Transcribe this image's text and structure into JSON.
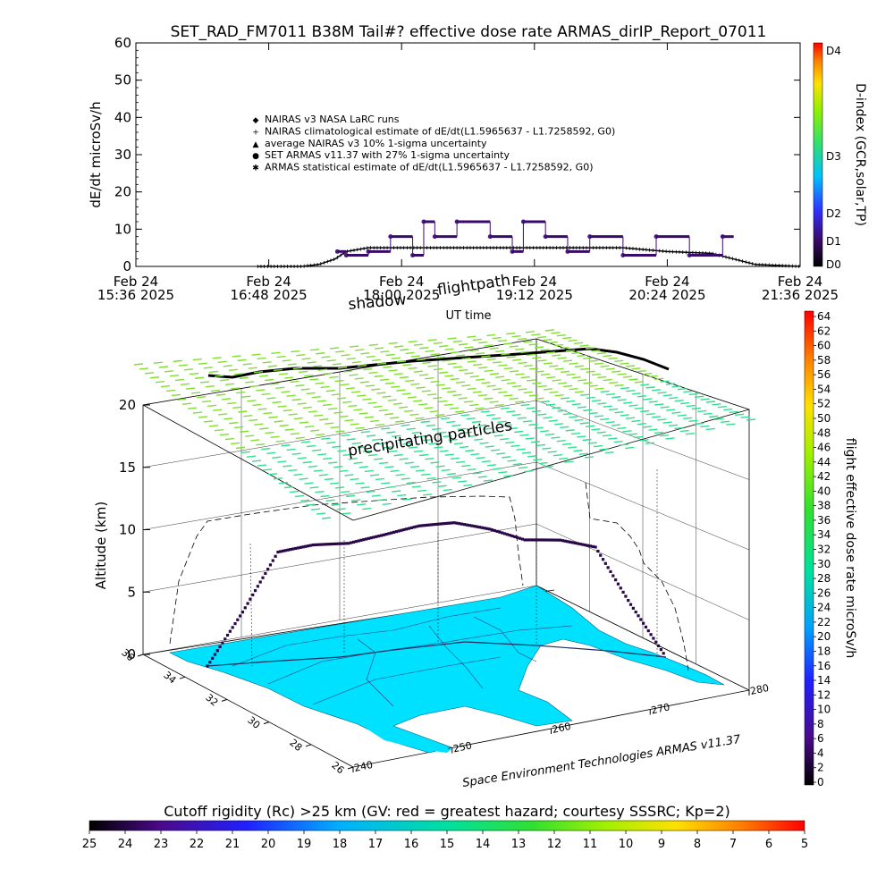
{
  "chart_data": [
    {
      "type": "scatter",
      "title": "SET_RAD_FM7011  B38M Tail#? effective dose rate ARMAS_dirIP_Report_07011",
      "xlabel": "UT time",
      "ylabel": "dE/dt microSv/h",
      "ylim": [
        0,
        60
      ],
      "yticks": [
        "0",
        "10",
        "20",
        "30",
        "40",
        "50",
        "60"
      ],
      "xtick_labels": [
        {
          "date": "Feb 24",
          "time": "15:36  2025"
        },
        {
          "date": "Feb 24",
          "time": "16:48  2025"
        },
        {
          "date": "Feb 24",
          "time": "18:00  2025"
        },
        {
          "date": "Feb 24",
          "time": "19:12  2025"
        },
        {
          "date": "Feb 24",
          "time": "20:24  2025"
        },
        {
          "date": "Feb 24",
          "time": "21:36  2025"
        }
      ],
      "legend_position": "top-left",
      "legend": [
        "NAIRAS v3 NASA LaRC runs",
        "NAIRAS climatological estimate of dE/dt(L1.5965637 - L1.7258592, G0)",
        "average NAIRAS v3 10% 1-sigma uncertainty",
        "SET ARMAS v11.37 with 27% 1-sigma uncertainty",
        "ARMAS statistical estimate of dE/dt(L1.5965637 - L1.7258592, G0)"
      ],
      "colorbar": {
        "label": "D-index (GCR,solar,TP)",
        "ticks": [
          "D0",
          "D1",
          "D2",
          "D3",
          "D4"
        ]
      },
      "series": [
        {
          "name": "NAIRAS climatological estimate of dE/dt(L1.5965637 - L1.7258592, G0)",
          "x_hours": [
            16.7,
            16.9,
            17.1,
            17.25,
            17.4,
            17.5,
            17.7,
            18.0,
            18.5,
            19.0,
            19.5,
            20.0,
            20.4,
            20.8,
            21.0,
            21.2,
            21.6
          ],
          "y": [
            0,
            0,
            0,
            0.5,
            2,
            4,
            5,
            5,
            5,
            5,
            5,
            5,
            4,
            3.5,
            2,
            0.5,
            0
          ]
        },
        {
          "name": "SET ARMAS v11.37 with 27% 1-sigma uncertainty",
          "x_hours": [
            17.42,
            17.5,
            17.7,
            17.9,
            18.1,
            18.2,
            18.3,
            18.5,
            18.8,
            19.0,
            19.1,
            19.3,
            19.5,
            19.7,
            20.0,
            20.3,
            20.6,
            20.9
          ],
          "y": [
            4,
            3,
            4,
            8,
            3,
            12,
            8,
            12,
            8,
            4,
            12,
            8,
            4,
            8,
            3,
            8,
            3,
            8
          ]
        }
      ]
    },
    {
      "type": "scatter",
      "title": "",
      "zlabel": "Altitude (km)",
      "zlim": [
        0,
        20
      ],
      "zticks": [
        "0",
        "5",
        "10",
        "15",
        "20"
      ],
      "lat_ticks": [
        "36",
        "34",
        "32",
        "30",
        "28",
        "26"
      ],
      "lon_ticks": [
        "240",
        "250",
        "260",
        "270",
        "280"
      ],
      "annotations": [
        "shadow",
        "flightpath",
        "precipitating particles"
      ],
      "credit": "Space Environment Technologies ARMAS v11.37",
      "colorbar": {
        "label": "flight effective dose rate microSv/h",
        "ticks": [
          "0",
          "2",
          "4",
          "6",
          "8",
          "10",
          "12",
          "14",
          "16",
          "18",
          "20",
          "22",
          "24",
          "26",
          "28",
          "30",
          "32",
          "34",
          "36",
          "38",
          "40",
          "42",
          "44",
          "46",
          "48",
          "50",
          "52",
          "54",
          "56",
          "58",
          "60",
          "62",
          "64"
        ]
      },
      "flight_altitude_km": [
        0,
        4,
        8.5,
        8.8,
        8.7,
        9.2,
        9.8,
        10.0,
        9.5,
        8.7,
        8.8,
        8.4,
        4,
        0
      ]
    },
    {
      "type": "heatmap",
      "title": "Cutoff rigidity (Rc) >25 km (GV: red = greatest hazard; courtesy SSSRC; Kp=2)",
      "colorbar_ticks": [
        "25",
        "24",
        "23",
        "22",
        "21",
        "20",
        "19",
        "18",
        "17",
        "16",
        "15",
        "14",
        "13",
        "12",
        "11",
        "10",
        "9",
        "8",
        "7",
        "6",
        "5"
      ]
    }
  ]
}
